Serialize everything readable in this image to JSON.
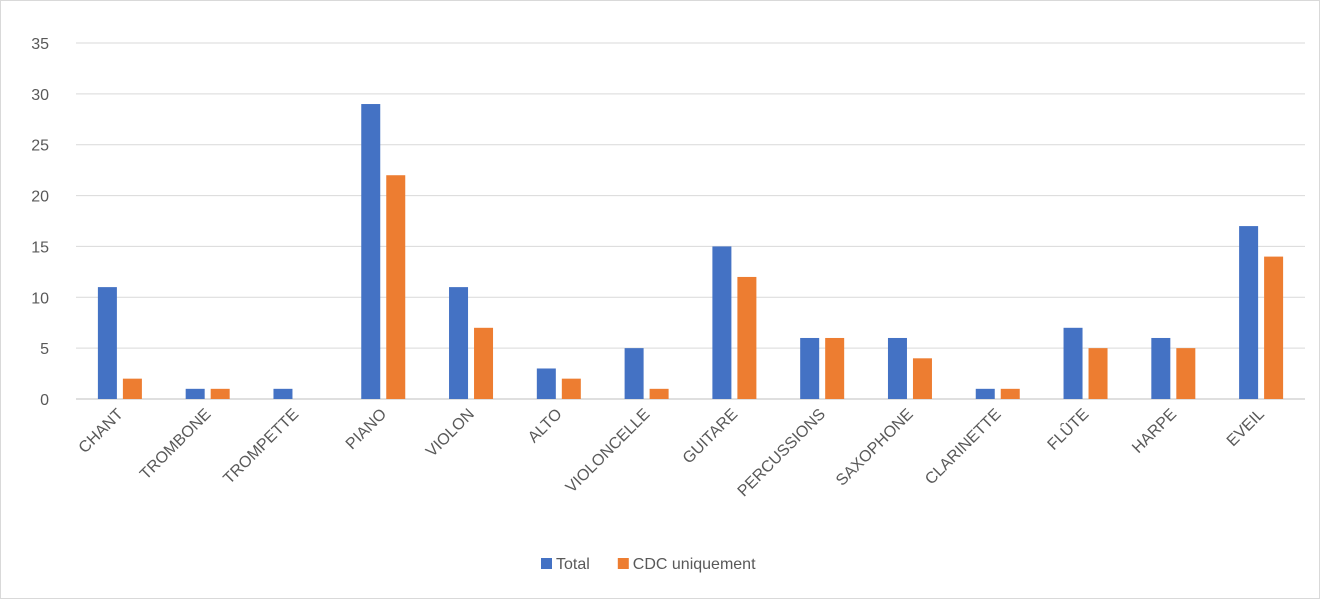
{
  "chart_data": {
    "type": "bar",
    "title": "",
    "xlabel": "",
    "ylabel": "",
    "categories": [
      "CHANT",
      "TROMBONE",
      "TROMPETTE",
      "PIANO",
      "VIOLON",
      "ALTO",
      "VIOLONCELLE",
      "GUITARE",
      "PERCUSSIONS",
      "SAXOPHONE",
      "CLARINETTE",
      "FLÛTE",
      "HARPE",
      "EVEIL"
    ],
    "series": [
      {
        "name": "Total",
        "color": "#4472c4",
        "values": [
          11,
          1,
          1,
          29,
          11,
          3,
          5,
          15,
          6,
          6,
          1,
          7,
          6,
          17
        ]
      },
      {
        "name": "CDC uniquement",
        "color": "#ed7d31",
        "values": [
          2,
          1,
          0,
          22,
          7,
          2,
          1,
          12,
          6,
          4,
          1,
          5,
          5,
          14
        ]
      }
    ],
    "ylim": [
      0,
      35
    ],
    "yticks": [
      0,
      5,
      10,
      15,
      20,
      25,
      30,
      35
    ],
    "grid": true,
    "legend_position": "bottom"
  }
}
